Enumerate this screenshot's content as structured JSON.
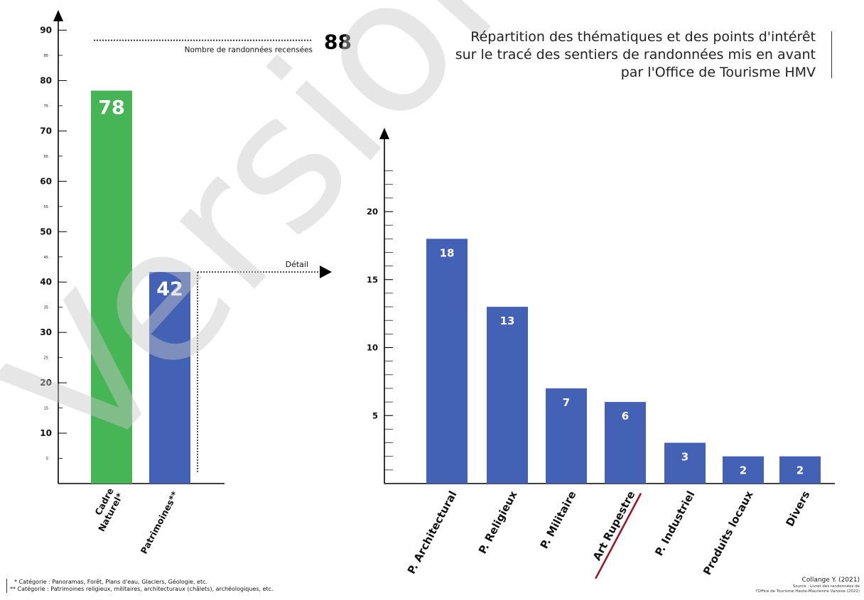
{
  "title": [
    "Répartition des thématiques et des points d'intérêt",
    "sur le tracé des sentiers de randonnées mis en avant",
    "par l'Office de Tourisme HMV"
  ],
  "footnotes": [
    "* Catégorie : Panoramas, Forêt, Plans d'eau, Glaciers, Géologie, etc.",
    "** Catégorie : Patrimoines religieux, militaires, architecturaux (châlets), archéologiques, etc."
  ],
  "credit": "Collange Y. (2021)",
  "source": [
    "Source : Livret des randonnées de",
    "l'Office de Tourisme Haute-Maurienne Vanoise (2022)"
  ],
  "watermark": "Version Alpha",
  "colors": {
    "green": "#45b555",
    "blue": "#4361b5",
    "accent_underline": "#a01020",
    "axis": "#000000",
    "watermark": "#c8c8c8"
  },
  "chart_data": [
    {
      "type": "bar",
      "categories": [
        "Cadre Naturel*",
        "Patrimoines**"
      ],
      "values": [
        78,
        42
      ],
      "colors": [
        "#45b555",
        "#4361b5"
      ],
      "ylim": [
        0,
        90
      ],
      "major_ticks": [
        10,
        20,
        30,
        40,
        50,
        60,
        70,
        80,
        90
      ],
      "minor_ticks": [
        5,
        15,
        25,
        35,
        45,
        55,
        65,
        75,
        85
      ],
      "reference_line": {
        "value": 88,
        "label": "Nombre de randonnées recensées"
      },
      "annotation": {
        "text": "Détail",
        "from_category": "Patrimoines**"
      }
    },
    {
      "type": "bar",
      "categories": [
        "P. Architectural",
        "P. Religieux",
        "P. Militaire",
        "Art Rupestre",
        "P. Industriel",
        "Produits locaux",
        "Divers"
      ],
      "values": [
        18,
        13,
        7,
        6,
        3,
        2,
        2
      ],
      "color": "#4361b5",
      "highlight_category": "Art Rupestre",
      "ylim": [
        0,
        20
      ],
      "major_ticks": [
        5,
        10,
        15,
        20
      ]
    }
  ]
}
